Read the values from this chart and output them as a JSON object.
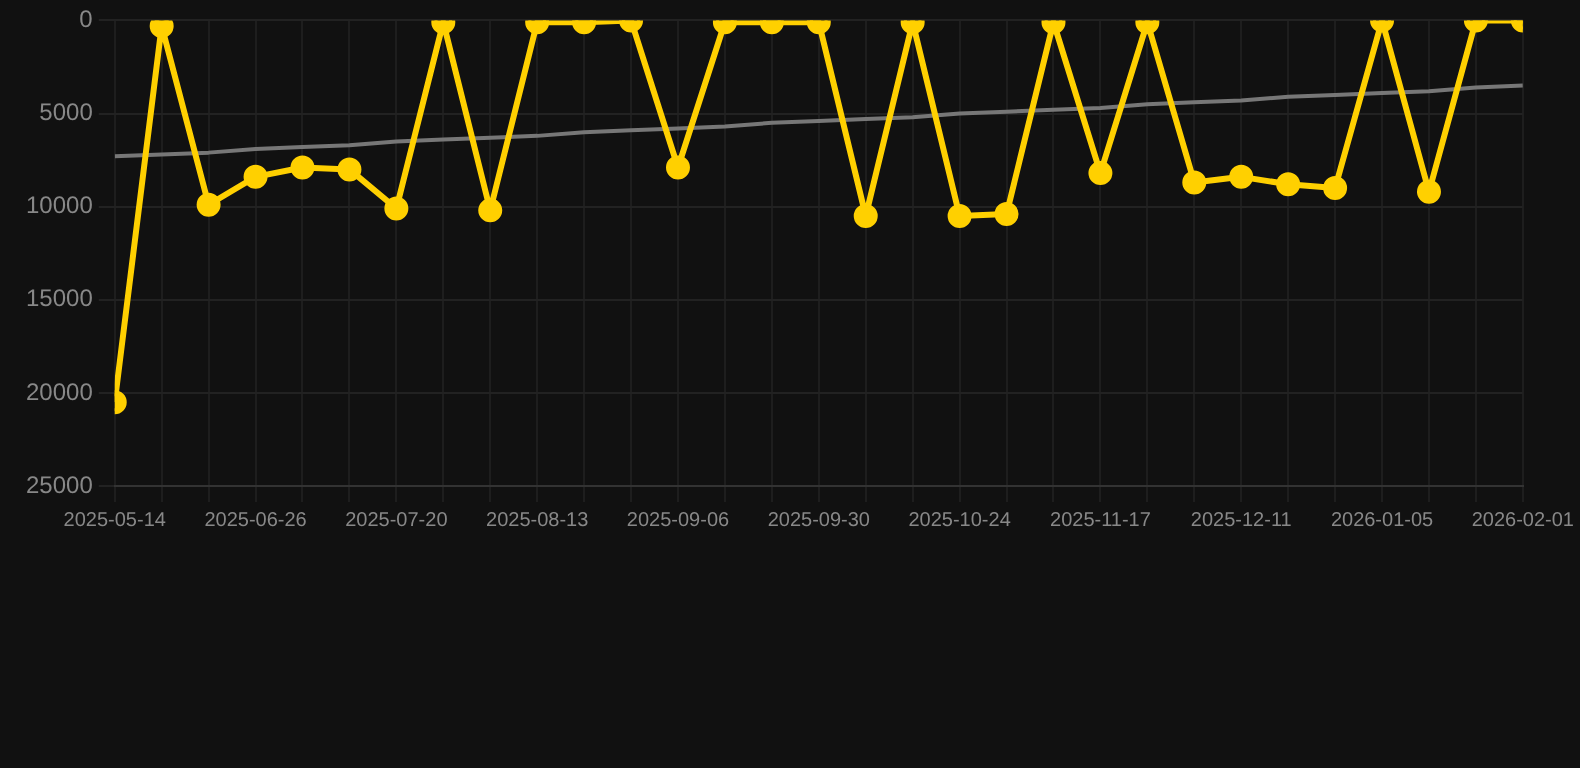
{
  "chart_data": {
    "type": "line",
    "categories": [
      "2025-05-14",
      null,
      null,
      "2025-06-26",
      null,
      null,
      "2025-07-20",
      null,
      null,
      "2025-08-13",
      null,
      null,
      "2025-09-06",
      null,
      null,
      "2025-09-30",
      null,
      null,
      "2025-10-24",
      null,
      null,
      "2025-11-17",
      null,
      null,
      "2025-12-11",
      null,
      null,
      "2026-01-05",
      null,
      null,
      "2026-02-01"
    ],
    "series": [
      {
        "color": "#ffd000",
        "values": [
          20500,
          300,
          9900,
          8400,
          7900,
          8000,
          10100,
          100,
          10200,
          100,
          100,
          0,
          7900,
          100,
          100,
          100,
          10500,
          100,
          10500,
          10400,
          100,
          8200,
          100,
          8700,
          8400,
          8800,
          9000,
          0,
          9200,
          0,
          0
        ]
      },
      {
        "type": "line",
        "color": "#777777",
        "marker": "none",
        "values": [
          7300,
          7200,
          7100,
          6900,
          6800,
          6700,
          6500,
          6400,
          6300,
          6200,
          6000,
          5900,
          5800,
          5700,
          5500,
          5400,
          5300,
          5200,
          5000,
          4900,
          4800,
          4700,
          4500,
          4400,
          4300,
          4100,
          4000,
          3900,
          3800,
          3600,
          3500
        ]
      }
    ],
    "ylim": [
      25000,
      0
    ],
    "yticks": [
      0,
      5000,
      10000,
      15000,
      20000,
      25000
    ],
    "grid": true,
    "legend": false,
    "marker": "circle",
    "line_style": "solid"
  }
}
